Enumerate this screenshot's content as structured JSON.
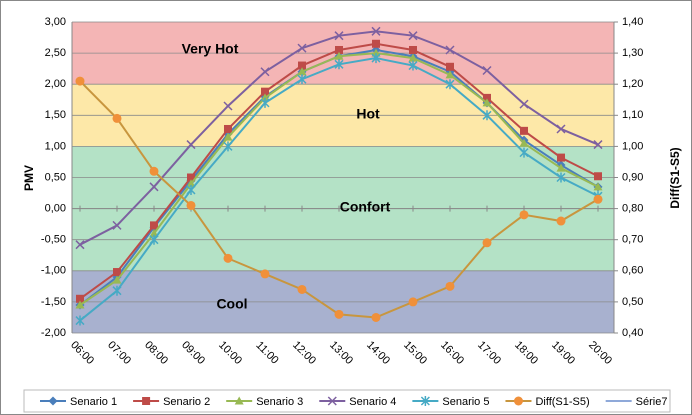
{
  "chart_data": {
    "type": "line",
    "categories": [
      "06:00",
      "07:00",
      "08:00",
      "09:00",
      "10:00",
      "11:00",
      "12:00",
      "13:00",
      "14:00",
      "15:00",
      "16:00",
      "17:00",
      "18:00",
      "19:00",
      "20:00"
    ],
    "ylabel": "PMV",
    "y2label": "Diff(S1-S5)",
    "ylim": [
      -2,
      3
    ],
    "yticks": [
      {
        "value": -2,
        "label": "-2,00"
      },
      {
        "value": -1.5,
        "label": "-1,50"
      },
      {
        "value": -1,
        "label": "-1,00"
      },
      {
        "value": -0.5,
        "label": "-0,50"
      },
      {
        "value": 0,
        "label": "0,00"
      },
      {
        "value": 0.5,
        "label": "0,50"
      },
      {
        "value": 1,
        "label": "1,00"
      },
      {
        "value": 1.5,
        "label": "1,50"
      },
      {
        "value": 2,
        "label": "2,00"
      },
      {
        "value": 2.5,
        "label": "2,50"
      },
      {
        "value": 3,
        "label": "3,00"
      }
    ],
    "y2lim": [
      0.4,
      1.4
    ],
    "y2ticks": [
      {
        "value": 0.4,
        "label": "0,40"
      },
      {
        "value": 0.5,
        "label": "0,50"
      },
      {
        "value": 0.6,
        "label": "0,60"
      },
      {
        "value": 0.7,
        "label": "0,70"
      },
      {
        "value": 0.8,
        "label": "0,80"
      },
      {
        "value": 0.9,
        "label": "0,90"
      },
      {
        "value": 1.0,
        "label": "1,00"
      },
      {
        "value": 1.1,
        "label": "1,10"
      },
      {
        "value": 1.2,
        "label": "1,20"
      },
      {
        "value": 1.3,
        "label": "1,30"
      },
      {
        "value": 1.4,
        "label": "1,40"
      }
    ],
    "grid": true,
    "zones": [
      {
        "label": "Very  Hot",
        "from": 2,
        "to": 3,
        "color": "#f4b5b5"
      },
      {
        "label": "Hot",
        "from": 1,
        "to": 2,
        "color": "#fde8a8"
      },
      {
        "label": "Confort",
        "from": -1,
        "to": 1,
        "color": "#b4e2c6"
      },
      {
        "label": "Cool",
        "from": -2,
        "to": -1,
        "color": "#a8b1cf"
      }
    ],
    "series": [
      {
        "name": "Senario 1",
        "color": "#4a7ebb",
        "marker": "diamond",
        "values": [
          -1.55,
          -1.1,
          -0.3,
          0.45,
          1.2,
          1.8,
          2.2,
          2.45,
          2.55,
          2.45,
          2.2,
          1.7,
          1.1,
          0.7,
          0.35
        ]
      },
      {
        "name": "Senario 2",
        "color": "#be4b48",
        "marker": "square",
        "values": [
          -1.45,
          -1.02,
          -0.27,
          0.5,
          1.28,
          1.88,
          2.3,
          2.55,
          2.65,
          2.55,
          2.28,
          1.78,
          1.25,
          0.82,
          0.52
        ]
      },
      {
        "name": "Senario 3",
        "color": "#98b954",
        "marker": "triangle",
        "values": [
          -1.55,
          -1.15,
          -0.4,
          0.4,
          1.15,
          1.78,
          2.2,
          2.45,
          2.5,
          2.42,
          2.15,
          1.7,
          1.05,
          0.65,
          0.35
        ]
      },
      {
        "name": "Senario 4",
        "color": "#7d60a0",
        "marker": "x",
        "values": [
          -0.58,
          -0.27,
          0.35,
          1.03,
          1.65,
          2.2,
          2.58,
          2.78,
          2.85,
          2.78,
          2.55,
          2.22,
          1.68,
          1.28,
          1.03
        ]
      },
      {
        "name": "Senario 5",
        "color": "#46aac5",
        "marker": "star",
        "values": [
          -1.8,
          -1.32,
          -0.5,
          0.3,
          1.0,
          1.7,
          2.08,
          2.32,
          2.42,
          2.3,
          2.0,
          1.5,
          0.9,
          0.5,
          0.2
        ]
      },
      {
        "name": "Diff(S1-S5)",
        "color": "#c8963e",
        "marker": "circle",
        "axis": "y2",
        "values": [
          1.21,
          1.09,
          0.92,
          0.81,
          0.64,
          0.59,
          0.54,
          0.46,
          0.45,
          0.5,
          0.55,
          0.69,
          0.78,
          0.76,
          0.83
        ]
      },
      {
        "name": "Série7",
        "color": "#8fa9d9",
        "marker": "none",
        "values": [
          null,
          null,
          null,
          null,
          null,
          null,
          null,
          null,
          null,
          null,
          null,
          null,
          null,
          null,
          null
        ]
      }
    ]
  }
}
